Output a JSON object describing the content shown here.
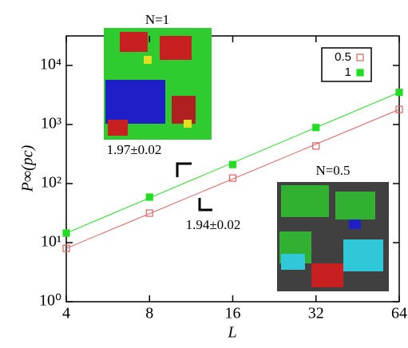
{
  "chart_data": {
    "type": "scatter",
    "xlabel": "L",
    "ylabel": "P∞(pc)",
    "x": [
      4,
      8,
      16,
      32,
      64
    ],
    "series": [
      {
        "name": "0.5",
        "color": "#e06060",
        "values": [
          8.0,
          31.6,
          124,
          433,
          1800
        ]
      },
      {
        "name": "1",
        "color": "#22dd22",
        "values": [
          14.5,
          59,
          210,
          890,
          3500
        ]
      }
    ],
    "xlim": [
      4,
      64
    ],
    "xticks": [
      4,
      8,
      16,
      32,
      64
    ],
    "ylim": [
      1,
      31623
    ],
    "yticks": [
      {
        "value": 1,
        "label": "10⁰"
      },
      {
        "value": 10,
        "label": "10¹"
      },
      {
        "value": 100,
        "label": "10²"
      },
      {
        "value": 1000,
        "label": "10³"
      },
      {
        "value": 10000,
        "label": "10⁴"
      }
    ],
    "xscale": "log",
    "yscale": "log",
    "legend": "upper right",
    "annotations": [
      "N=1",
      "N=0.5",
      "1.97±0.02",
      "1.94±0.02"
    ]
  }
}
